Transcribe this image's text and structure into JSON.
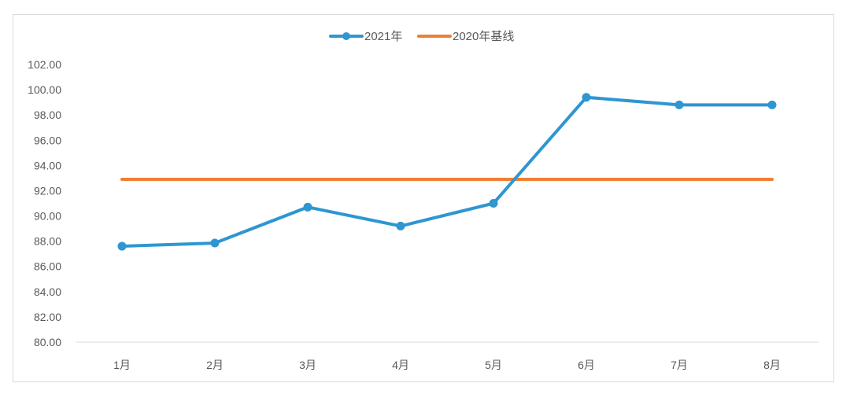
{
  "chart_data": {
    "type": "line",
    "categories": [
      "1月",
      "2月",
      "3月",
      "4月",
      "5月",
      "6月",
      "7月",
      "8月"
    ],
    "series": [
      {
        "name": "2021年",
        "values": [
          87.6,
          87.85,
          90.7,
          89.2,
          91.0,
          99.4,
          98.8,
          98.8
        ],
        "color": "#2e96d1",
        "markers": true
      },
      {
        "name": "2020年基线",
        "values": [
          92.9,
          92.9,
          92.9,
          92.9,
          92.9,
          92.9,
          92.9,
          92.9
        ],
        "color": "#f07f34",
        "markers": false
      }
    ],
    "ylim": [
      80,
      102
    ],
    "ytick_step": 2,
    "ytick_labels": [
      "80.00",
      "82.00",
      "84.00",
      "86.00",
      "88.00",
      "90.00",
      "92.00",
      "94.00",
      "96.00",
      "98.00",
      "100.00",
      "102.00"
    ],
    "legend_position": "top",
    "grid": false
  }
}
